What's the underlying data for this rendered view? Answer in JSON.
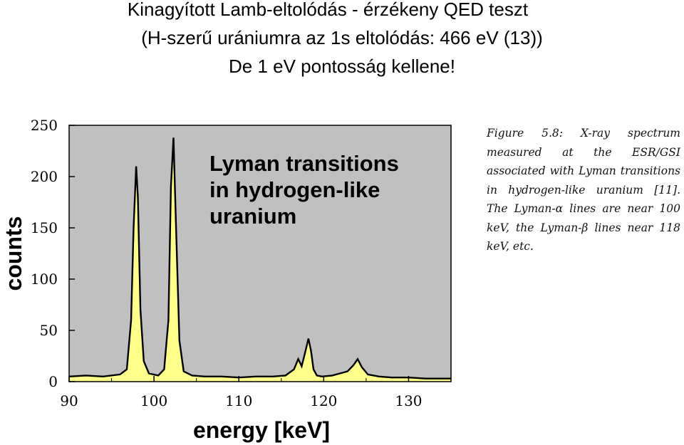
{
  "slide": {
    "title_line1": "Kinagyított Lamb-eltolódás  -  érzékeny QED teszt",
    "title_line2": "(H-szerű urániumra az 1s eltolódás: 466 eV (13))",
    "title_line3": "De 1 eV pontosság kellene!"
  },
  "figure": {
    "caption": "Figure 5.8: X-ray spectrum measured at the ESR/GSI associated with Lyman transitions in hydrogen-like uranium [11]. The Lyman-α lines are near 100 keV, the Lyman-β lines near 118 keV, etc."
  },
  "chart_data": {
    "type": "line",
    "title": "",
    "annotation": [
      "Lyman transitions",
      "in hydrogen-like",
      "uranium"
    ],
    "xlabel": "energy [keV]",
    "ylabel": "counts",
    "xlim": [
      90,
      135
    ],
    "ylim": [
      0,
      250
    ],
    "xticks": [
      90,
      100,
      110,
      120,
      130
    ],
    "yticks": [
      0,
      50,
      100,
      150,
      200,
      250
    ],
    "grid": false,
    "colors": {
      "plot_background": "#c0c0c0",
      "fill": "#ffff8c",
      "line": "#000000"
    },
    "series": [
      {
        "x": [
          90,
          92,
          94,
          96,
          96.8,
          97.3,
          97.6,
          97.9,
          98.1,
          98.4,
          98.8,
          99.4,
          100.5,
          101.2,
          101.7,
          102.0,
          102.3,
          102.6,
          103.0,
          103.5,
          104.5,
          106,
          108,
          110,
          112,
          114,
          115.5,
          116.5,
          117.0,
          117.4,
          117.8,
          118.2,
          118.5,
          118.8,
          119.2,
          119.8,
          121,
          122.8,
          123.5,
          124.0,
          124.5,
          125.2,
          126.5,
          128,
          130,
          132,
          135
        ],
        "values": [
          5,
          6,
          5,
          7,
          12,
          60,
          150,
          210,
          180,
          70,
          20,
          8,
          6,
          12,
          60,
          190,
          238,
          150,
          40,
          10,
          6,
          5,
          5,
          4,
          5,
          5,
          6,
          12,
          22,
          15,
          28,
          42,
          30,
          12,
          6,
          5,
          6,
          10,
          16,
          22,
          14,
          7,
          5,
          4,
          4,
          3,
          3
        ]
      }
    ]
  }
}
